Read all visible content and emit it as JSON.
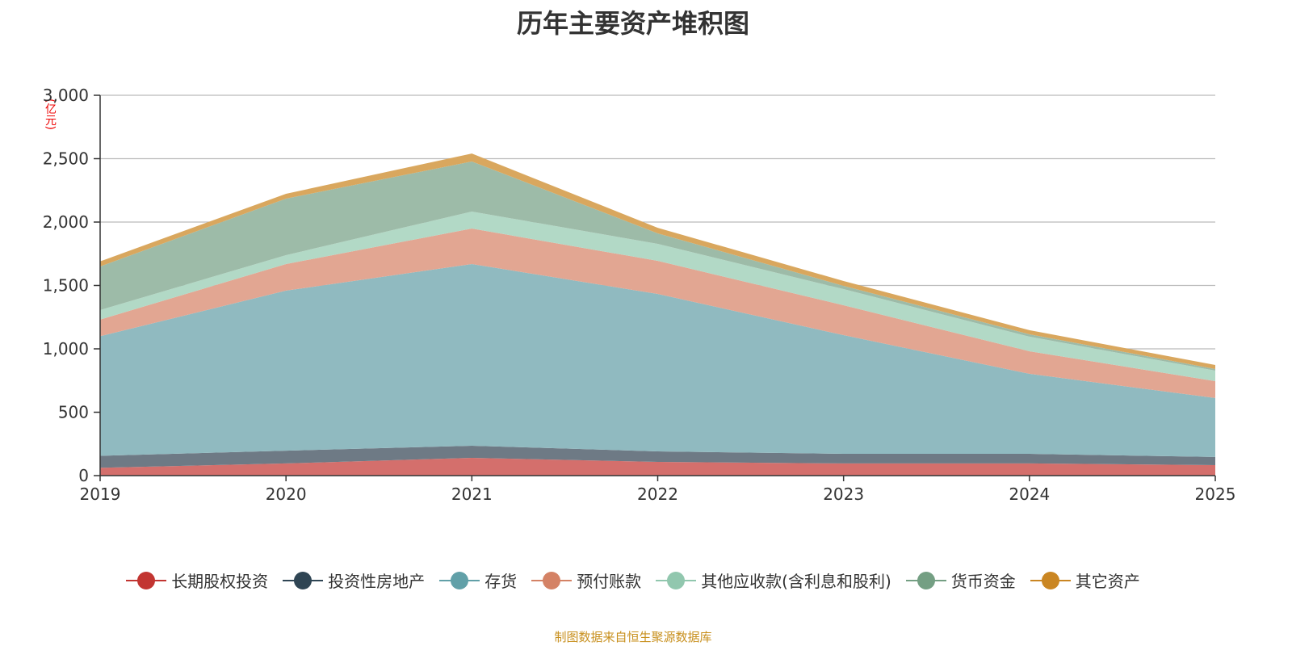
{
  "chart_data": {
    "type": "area",
    "stacked": true,
    "title": "历年主要资产堆积图",
    "ylabel": "(亿元)",
    "xlabel": "",
    "ylim": [
      0,
      3000
    ],
    "yticks": [
      "0",
      "500",
      "1,000",
      "1,500",
      "2,000",
      "2,500",
      "3,000"
    ],
    "x": [
      "2019",
      "2020",
      "2021",
      "2022",
      "2023",
      "2024",
      "2025"
    ],
    "legend_position": "bottom",
    "grid": true,
    "series": [
      {
        "name": "长期股权投资",
        "color": "#c23531",
        "fill": "#d46f6c",
        "values": [
          62,
          96,
          140,
          108,
          96,
          96,
          83
        ]
      },
      {
        "name": "投资性房地产",
        "color": "#2f4554",
        "fill": "#6e7a85",
        "values": [
          94,
          101,
          96,
          83,
          76,
          76,
          64
        ]
      },
      {
        "name": "存货",
        "color": "#61a0a8",
        "fill": "#90bac0",
        "values": [
          944,
          1262,
          1433,
          1242,
          936,
          631,
          465
        ]
      },
      {
        "name": "预付账款",
        "color": "#d48265",
        "fill": "#e2a692",
        "values": [
          131,
          210,
          280,
          261,
          236,
          178,
          133
        ]
      },
      {
        "name": "其他应收款(含利息和股利)",
        "color": "#91c7ae",
        "fill": "#b2d9c6",
        "values": [
          75,
          70,
          134,
          134,
          127,
          115,
          83
        ]
      },
      {
        "name": "货币资金",
        "color": "#749f83",
        "fill": "#9dbba8",
        "values": [
          344,
          446,
          395,
          83,
          26,
          19,
          13
        ]
      },
      {
        "name": "其它资产",
        "color": "#ca8622",
        "fill": "#d9a75e",
        "values": [
          40,
          38,
          63,
          44,
          38,
          32,
          32
        ]
      }
    ]
  },
  "source": "制图数据来自恒生聚源数据库"
}
